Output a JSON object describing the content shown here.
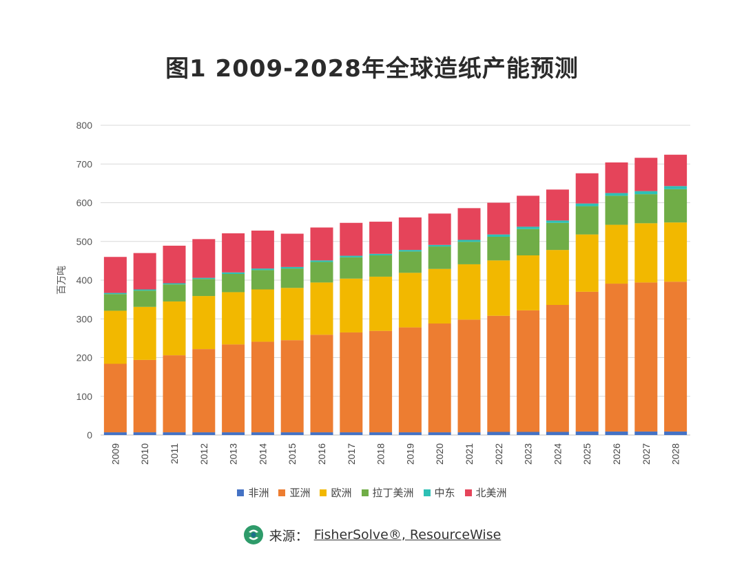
{
  "chart_data": {
    "type": "bar",
    "stacked": true,
    "title": "图1  2009-2028年全球造纸产能预测",
    "ylabel": "百万吨",
    "xlabel": "",
    "ylim": [
      0,
      800
    ],
    "yticks": [
      0,
      100,
      200,
      300,
      400,
      500,
      600,
      700,
      800
    ],
    "grid": true,
    "legend_position": "bottom",
    "categories": [
      "2009",
      "2010",
      "2011",
      "2012",
      "2013",
      "2014",
      "2015",
      "2016",
      "2017",
      "2018",
      "2019",
      "2020",
      "2021",
      "2022",
      "2023",
      "2024",
      "2025",
      "2026",
      "2027",
      "2028"
    ],
    "series": [
      {
        "name": "非洲",
        "color": "#4472C4",
        "values": [
          7,
          7,
          7,
          7,
          7,
          7,
          7,
          7,
          7,
          7,
          7,
          7,
          7,
          8,
          8,
          8,
          9,
          9,
          9,
          9
        ]
      },
      {
        "name": "亚洲",
        "color": "#ED7D31",
        "values": [
          177,
          187,
          199,
          215,
          227,
          234,
          238,
          252,
          258,
          262,
          271,
          281,
          291,
          300,
          314,
          328,
          361,
          382,
          385,
          387
        ]
      },
      {
        "name": "欧洲",
        "color": "#F2B800",
        "values": [
          137,
          137,
          139,
          137,
          135,
          135,
          135,
          135,
          139,
          140,
          141,
          141,
          143,
          143,
          142,
          142,
          148,
          152,
          153,
          153
        ]
      },
      {
        "name": "拉丁美洲",
        "color": "#70AD47",
        "values": [
          43,
          42,
          44,
          44,
          47,
          50,
          50,
          53,
          55,
          55,
          55,
          58,
          58,
          61,
          68,
          70,
          73,
          75,
          75,
          86
        ]
      },
      {
        "name": "中东",
        "color": "#2EC0B5",
        "values": [
          3,
          3,
          3,
          3,
          4,
          4,
          4,
          4,
          4,
          4,
          4,
          4,
          5,
          6,
          6,
          6,
          7,
          7,
          8,
          8
        ]
      },
      {
        "name": "北美洲",
        "color": "#E5445A",
        "values": [
          93,
          94,
          97,
          100,
          101,
          98,
          86,
          85,
          85,
          83,
          84,
          81,
          82,
          82,
          80,
          80,
          78,
          79,
          86,
          81
        ]
      }
    ]
  },
  "source": {
    "prefix": "来源：",
    "text": "FisherSolve®, ResourceWise"
  },
  "colors": {
    "grid": "#d9d9d9",
    "axis": "#bfbfbf",
    "logo_green": "#2e9b6a",
    "logo_teal": "#1f6e8c"
  }
}
